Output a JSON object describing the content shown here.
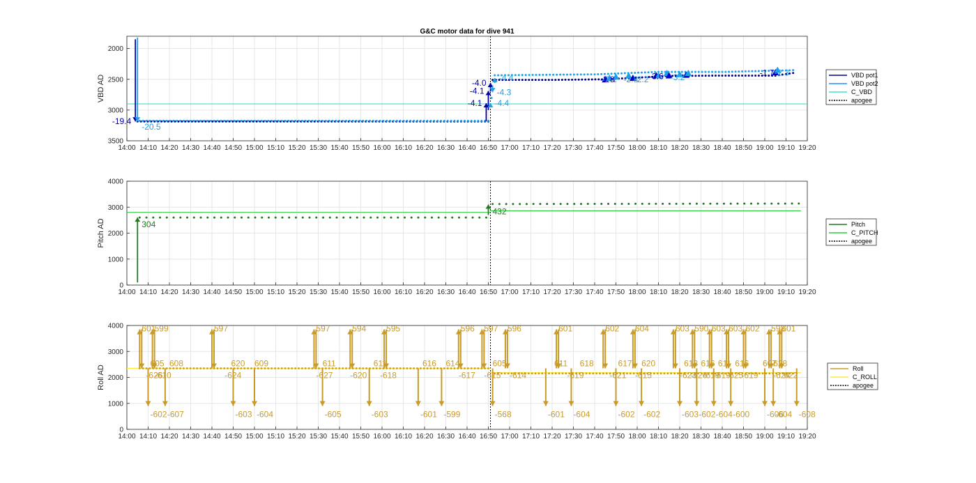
{
  "figure": {
    "title": "G&C motor data for dive 941"
  },
  "chart_data": [
    {
      "type": "line",
      "ylabel": "VBD AD",
      "yreverse": true,
      "ylim": [
        1800,
        3500
      ],
      "yticks": [
        2000,
        2500,
        3000,
        3500
      ],
      "xlim": [
        "14:00",
        "19:20"
      ],
      "xticks": [
        "14:00",
        "14:10",
        "14:20",
        "14:30",
        "14:40",
        "14:50",
        "15:00",
        "15:10",
        "15:20",
        "15:30",
        "15:40",
        "15:50",
        "16:00",
        "16:10",
        "16:20",
        "16:30",
        "16:40",
        "16:50",
        "17:00",
        "17:10",
        "17:20",
        "17:30",
        "17:40",
        "17:50",
        "18:00",
        "18:10",
        "18:20",
        "18:30",
        "18:40",
        "18:50",
        "19:00",
        "19:10",
        "19:20"
      ],
      "grid": true,
      "legend_position": "right",
      "legend": [
        {
          "name": "VBD pot1",
          "color": "#00008b",
          "style": "solid"
        },
        {
          "name": "VBD pot2",
          "color": "#1e90ff",
          "style": "solid"
        },
        {
          "name": "C_VBD",
          "color": "#40e0d0",
          "style": "solid"
        },
        {
          "name": "apogee",
          "color": "#000000",
          "style": "dotted"
        }
      ],
      "c_line": 2900,
      "apogee": "16:51",
      "series": [
        {
          "name": "VBD pot1",
          "color": "#00008b",
          "baseline": [
            [
              "14:05",
              3185
            ],
            [
              "16:50",
              3185
            ],
            [
              "16:52",
              2510
            ],
            [
              "17:20",
              2510
            ],
            [
              "17:45",
              2500
            ],
            [
              "18:15",
              2445
            ],
            [
              "18:40",
              2440
            ],
            [
              "19:05",
              2440
            ],
            [
              "19:15",
              2390
            ]
          ]
        },
        {
          "name": "VBD pot2",
          "color": "#1ea0e6",
          "baseline": [
            [
              "14:06",
              3175
            ],
            [
              "16:50",
              3175
            ],
            [
              "16:53",
              2435
            ],
            [
              "17:40",
              2420
            ],
            [
              "18:10",
              2380
            ],
            [
              "18:40",
              2380
            ],
            [
              "19:05",
              2360
            ],
            [
              "19:15",
              2350
            ]
          ]
        }
      ],
      "pumps": [
        {
          "t": "14:04",
          "from": 1850,
          "to": 3185,
          "label": "-19.4",
          "color": "#0000a8",
          "side": "left"
        },
        {
          "t": "14:05",
          "from": 1820,
          "to": 3185,
          "label": "-20.5",
          "color": "#1ea0e6",
          "side": "right-below"
        },
        {
          "t": "16:49",
          "from": 3185,
          "to": 2890,
          "label": "-4.1",
          "color": "#0000a8",
          "side": "left"
        },
        {
          "t": "16:50",
          "from": 3000,
          "to": 2690,
          "label": "-4.1",
          "color": "#0000a8",
          "side": "left"
        },
        {
          "t": "16:51",
          "from": 2700,
          "to": 2560,
          "label": "-4.0",
          "color": "#0000a8",
          "side": "left"
        },
        {
          "t": "16:51",
          "from": 2900,
          "to": 2890,
          "label": "-4.4",
          "color": "#1ea0e6",
          "side": "right"
        },
        {
          "t": "16:52",
          "from": 2600,
          "to": 2710,
          "label": "-4.3",
          "color": "#1ea0e6",
          "side": "right"
        },
        {
          "t": "16:53",
          "from": 2560,
          "to": 2480,
          "label": "-4.4",
          "color": "#1ea0e6",
          "side": "right"
        }
      ],
      "annotations": [
        {
          "t": "17:46",
          "y": 2505,
          "text": "-2.8",
          "color": "#0000a8"
        },
        {
          "t": "17:47",
          "y": 2505,
          "text": "-2.1",
          "color": "#1ea0e6"
        },
        {
          "t": "17:57",
          "y": 2505,
          "text": "-2.8",
          "color": "#1ea0e6"
        },
        {
          "t": "18:02",
          "y": 2505,
          "text": "-2.2",
          "color": "#1ea0e6"
        },
        {
          "t": "18:09",
          "y": 2450,
          "text": "-3.6",
          "color": "#0000a8"
        },
        {
          "t": "18:19",
          "y": 2470,
          "text": "-3.2",
          "color": "#1ea0e6"
        },
        {
          "t": "19:01",
          "y": 2395,
          "text": "-1.7",
          "color": "#0000a8"
        },
        {
          "t": "19:08",
          "y": 2395,
          "text": "-2.3",
          "color": "#1ea0e6"
        }
      ],
      "triangles": [
        {
          "t": "17:45",
          "y": 2505,
          "color": "#0000cd"
        },
        {
          "t": "17:47",
          "y": 2480,
          "color": "#1ea0e6"
        },
        {
          "t": "17:50",
          "y": 2460,
          "color": "#1ea0e6"
        },
        {
          "t": "17:56",
          "y": 2440,
          "color": "#1ea0e6"
        },
        {
          "t": "17:58",
          "y": 2480,
          "color": "#0000cd"
        },
        {
          "t": "18:09",
          "y": 2440,
          "color": "#0000cd"
        },
        {
          "t": "18:10",
          "y": 2440,
          "color": "#1ea0e6"
        },
        {
          "t": "18:14",
          "y": 2400,
          "color": "#1ea0e6"
        },
        {
          "t": "18:15",
          "y": 2440,
          "color": "#0000cd"
        },
        {
          "t": "18:20",
          "y": 2420,
          "color": "#1ea0e6"
        },
        {
          "t": "18:23",
          "y": 2430,
          "color": "#0000cd"
        },
        {
          "t": "18:24",
          "y": 2400,
          "color": "#1ea0e6"
        },
        {
          "t": "19:05",
          "y": 2390,
          "color": "#0000cd"
        },
        {
          "t": "19:06",
          "y": 2350,
          "color": "#1ea0e6"
        }
      ]
    },
    {
      "type": "line",
      "ylabel": "Pitch AD",
      "ylim": [
        0,
        4000
      ],
      "yticks": [
        0,
        1000,
        2000,
        3000,
        4000
      ],
      "xlim": [
        "14:00",
        "19:20"
      ],
      "xticks": [
        "14:00",
        "14:10",
        "14:20",
        "14:30",
        "14:40",
        "14:50",
        "15:00",
        "15:10",
        "15:20",
        "15:30",
        "15:40",
        "15:50",
        "16:00",
        "16:10",
        "16:20",
        "16:30",
        "16:40",
        "16:50",
        "17:00",
        "17:10",
        "17:20",
        "17:30",
        "17:40",
        "17:50",
        "18:00",
        "18:10",
        "18:20",
        "18:30",
        "18:40",
        "18:50",
        "19:00",
        "19:10",
        "19:20"
      ],
      "grid": true,
      "legend_position": "right",
      "legend": [
        {
          "name": "Pitch",
          "color": "#1e7b1e",
          "style": "solid"
        },
        {
          "name": "C_PITCH",
          "color": "#2ecc40",
          "style": "solid"
        },
        {
          "name": "apogee",
          "color": "#000000",
          "style": "dotted"
        }
      ],
      "c_lines": [
        {
          "from": "14:00",
          "to": "16:51",
          "y": 2800
        },
        {
          "from": "16:51",
          "to": "19:17",
          "y": 2860
        }
      ],
      "apogee": "16:51",
      "series": [
        {
          "name": "Pitch",
          "color": "#1e7b1e",
          "baseline": [
            [
              "14:06",
              2600
            ],
            [
              "16:49",
              2600
            ],
            [
              "16:52",
              3120
            ],
            [
              "19:16",
              3140
            ]
          ]
        }
      ],
      "pumps": [
        {
          "t": "14:05",
          "from": 100,
          "to": 2600,
          "label": "304",
          "color": "#1e7b1e",
          "side": "right-below"
        },
        {
          "t": "16:50",
          "from": 2700,
          "to": 3100,
          "label": "432",
          "color": "#1e7b1e",
          "side": "right-below"
        }
      ]
    },
    {
      "type": "line",
      "ylabel": "Roll AD",
      "ylim": [
        0,
        4000
      ],
      "yticks": [
        0,
        1000,
        2000,
        3000,
        4000
      ],
      "xlim": [
        "14:00",
        "19:20"
      ],
      "xticks": [
        "14:00",
        "14:10",
        "14:20",
        "14:30",
        "14:40",
        "14:50",
        "15:00",
        "15:10",
        "15:20",
        "15:30",
        "15:40",
        "15:50",
        "16:00",
        "16:10",
        "16:20",
        "16:30",
        "16:40",
        "16:50",
        "17:00",
        "17:10",
        "17:20",
        "17:30",
        "17:40",
        "17:50",
        "18:00",
        "18:10",
        "18:20",
        "18:30",
        "18:40",
        "18:50",
        "19:00",
        "19:10",
        "19:20"
      ],
      "grid": true,
      "legend_position": "right",
      "legend": [
        {
          "name": "Roll",
          "color": "#c89a28",
          "style": "solid"
        },
        {
          "name": "C_ROLL",
          "color": "#ffeb3b",
          "style": "solid"
        },
        {
          "name": "apogee",
          "color": "#000000",
          "style": "dotted"
        }
      ],
      "c_lines": [
        {
          "from": "14:00",
          "to": "16:51",
          "y": 2350
        },
        {
          "from": "16:51",
          "to": "19:17",
          "y": 2180
        }
      ],
      "apogee": "16:51",
      "baseline": [
        [
          "14:06",
          2350
        ],
        [
          "16:50",
          2350
        ],
        [
          "16:53",
          2150
        ],
        [
          "19:15",
          2150
        ]
      ],
      "labels_up": [
        {
          "t": "14:06",
          "text": "601"
        },
        {
          "t": "14:12",
          "text": "599"
        },
        {
          "t": "14:40",
          "text": "597"
        },
        {
          "t": "15:28",
          "text": "597"
        },
        {
          "t": "15:45",
          "text": "594"
        },
        {
          "t": "16:01",
          "text": "595"
        },
        {
          "t": "16:36",
          "text": "596"
        },
        {
          "t": "16:47",
          "text": "597"
        },
        {
          "t": "16:58",
          "text": "596"
        },
        {
          "t": "17:22",
          "text": "601"
        },
        {
          "t": "17:44",
          "text": "602"
        },
        {
          "t": "17:58",
          "text": "604"
        },
        {
          "t": "18:17",
          "text": "603"
        },
        {
          "t": "18:26",
          "text": "590"
        },
        {
          "t": "18:34",
          "text": "603"
        },
        {
          "t": "18:42",
          "text": "603"
        },
        {
          "t": "18:50",
          "text": "602"
        },
        {
          "t": "19:02",
          "text": "598"
        },
        {
          "t": "19:07",
          "text": "601"
        }
      ],
      "labels_mid_up": [
        {
          "t": "14:11",
          "text": "605"
        },
        {
          "t": "14:20",
          "text": "608"
        },
        {
          "t": "14:49",
          "text": "620"
        },
        {
          "t": "15:00",
          "text": "609"
        },
        {
          "t": "15:32",
          "text": "611"
        },
        {
          "t": "15:56",
          "text": "611"
        },
        {
          "t": "16:19",
          "text": "616"
        },
        {
          "t": "16:30",
          "text": "614"
        },
        {
          "t": "16:52",
          "text": "605"
        },
        {
          "t": "17:21",
          "text": "611"
        },
        {
          "t": "17:33",
          "text": "618"
        },
        {
          "t": "17:51",
          "text": "617"
        },
        {
          "t": "18:02",
          "text": "620"
        },
        {
          "t": "18:22",
          "text": "613"
        },
        {
          "t": "18:30",
          "text": "616"
        },
        {
          "t": "18:38",
          "text": "611"
        },
        {
          "t": "18:46",
          "text": "616"
        },
        {
          "t": "18:59",
          "text": "607"
        },
        {
          "t": "19:04",
          "text": "628"
        }
      ],
      "labels_mid_down": [
        {
          "t": "14:09",
          "text": "-626"
        },
        {
          "t": "14:13",
          "text": "-610"
        },
        {
          "t": "14:46",
          "text": "-624"
        },
        {
          "t": "15:29",
          "text": "-627"
        },
        {
          "t": "15:45",
          "text": "-620"
        },
        {
          "t": "15:59",
          "text": "-618"
        },
        {
          "t": "16:36",
          "text": "-617"
        },
        {
          "t": "16:48",
          "text": "-615"
        },
        {
          "t": "17:00",
          "text": "-614"
        },
        {
          "t": "17:27",
          "text": "-619"
        },
        {
          "t": "17:47",
          "text": "-621"
        },
        {
          "t": "17:59",
          "text": "-615"
        },
        {
          "t": "18:20",
          "text": "-623"
        },
        {
          "t": "18:25",
          "text": "-626"
        },
        {
          "t": "18:31",
          "text": "-619"
        },
        {
          "t": "18:36",
          "text": "-619"
        },
        {
          "t": "18:42",
          "text": "-625"
        },
        {
          "t": "18:49",
          "text": "-619"
        },
        {
          "t": "19:04",
          "text": "-624"
        },
        {
          "t": "19:09",
          "text": "622"
        }
      ],
      "labels_down": [
        {
          "t": "14:10",
          "text": "-602"
        },
        {
          "t": "14:18",
          "text": "-607"
        },
        {
          "t": "14:50",
          "text": "-603"
        },
        {
          "t": "15:00",
          "text": "-604"
        },
        {
          "t": "15:32",
          "text": "-605"
        },
        {
          "t": "15:54",
          "text": "-603"
        },
        {
          "t": "16:17",
          "text": "-601"
        },
        {
          "t": "16:28",
          "text": "-599"
        },
        {
          "t": "16:52",
          "text": "-568"
        },
        {
          "t": "17:17",
          "text": "-601"
        },
        {
          "t": "17:29",
          "text": "-604"
        },
        {
          "t": "17:50",
          "text": "-602"
        },
        {
          "t": "18:02",
          "text": "-602"
        },
        {
          "t": "18:20",
          "text": "-603"
        },
        {
          "t": "18:28",
          "text": "-602"
        },
        {
          "t": "18:36",
          "text": "-604"
        },
        {
          "t": "18:44",
          "text": "-600"
        },
        {
          "t": "19:00",
          "text": "-606"
        },
        {
          "t": "19:04",
          "text": "-604"
        },
        {
          "t": "19:15",
          "text": "-608"
        }
      ]
    }
  ]
}
